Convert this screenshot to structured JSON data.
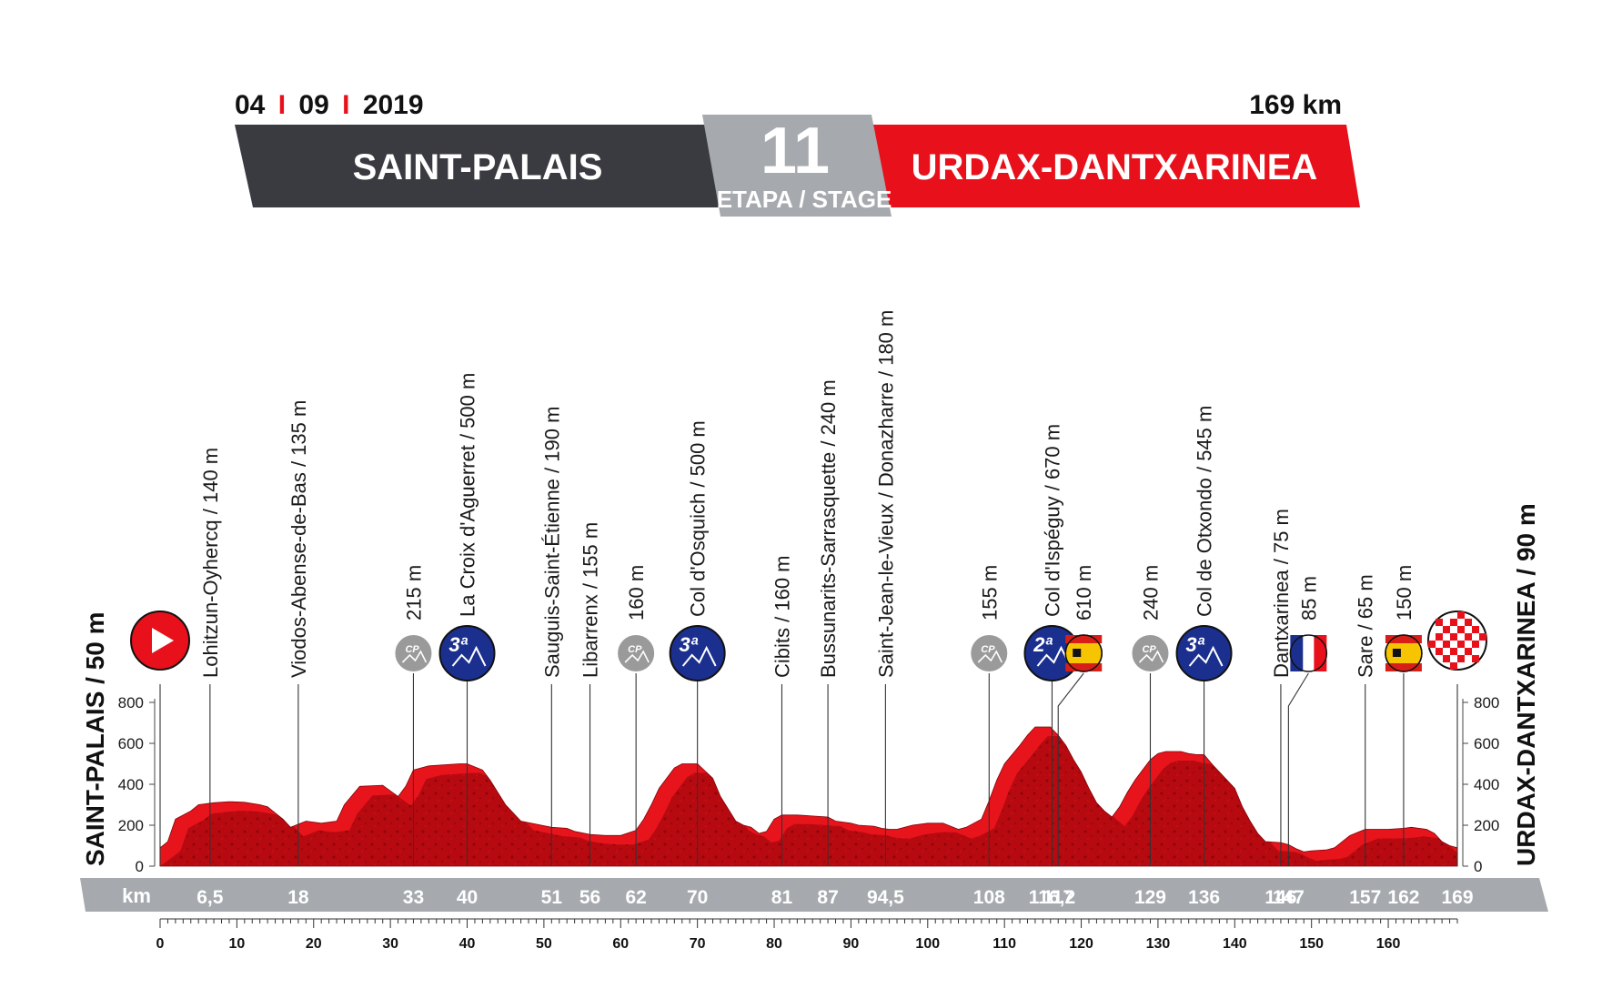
{
  "header": {
    "date_day": "04",
    "date_month": "09",
    "date_year": "2019",
    "distance": "169 km",
    "start_city": "SAINT-PALAIS",
    "finish_city": "URDAX-DANTXARINEA",
    "stage_number": "11",
    "stage_label": "ETAPA / STAGE"
  },
  "colors": {
    "dark_panel": "#3a3b40",
    "red_panel": "#e8101b",
    "grey_panel": "#a6a9ae",
    "profile_dark": "#a5080d",
    "profile_light": "#e8141c",
    "km_band": "#a6a9ae",
    "cat3_badge": "#1b2f8f",
    "cp_badge": "#9a9a9a"
  },
  "side_labels": {
    "start": "SAINT-PALAIS / 50 m",
    "finish": "URDAX-DANTXARINEA / 90 m",
    "km_label": "km"
  },
  "chart_data": {
    "type": "area",
    "xlabel": "km",
    "ylabel": "",
    "xlim": [
      0,
      169
    ],
    "ylim": [
      0,
      800
    ],
    "y_ticks": [
      "0",
      "200",
      "400",
      "600",
      "800"
    ],
    "x_ticks": [
      "0",
      "10",
      "20",
      "30",
      "40",
      "50",
      "60",
      "70",
      "80",
      "90",
      "100",
      "110",
      "120",
      "130",
      "140",
      "150",
      "160"
    ],
    "profile": [
      [
        0,
        90
      ],
      [
        1,
        120
      ],
      [
        2,
        230
      ],
      [
        4,
        270
      ],
      [
        5,
        300
      ],
      [
        7,
        310
      ],
      [
        9,
        315
      ],
      [
        11,
        312
      ],
      [
        13,
        300
      ],
      [
        14,
        290
      ],
      [
        16,
        230
      ],
      [
        17,
        190
      ],
      [
        18,
        205
      ],
      [
        19,
        220
      ],
      [
        21,
        210
      ],
      [
        23,
        220
      ],
      [
        24,
        300
      ],
      [
        26,
        390
      ],
      [
        29,
        395
      ],
      [
        31,
        340
      ],
      [
        32,
        390
      ],
      [
        33,
        470
      ],
      [
        35,
        490
      ],
      [
        37,
        495
      ],
      [
        39,
        500
      ],
      [
        40,
        500
      ],
      [
        42,
        470
      ],
      [
        43,
        420
      ],
      [
        45,
        300
      ],
      [
        47,
        220
      ],
      [
        49,
        205
      ],
      [
        51,
        190
      ],
      [
        53,
        185
      ],
      [
        54,
        170
      ],
      [
        56,
        155
      ],
      [
        58,
        150
      ],
      [
        60,
        150
      ],
      [
        62,
        175
      ],
      [
        63,
        230
      ],
      [
        64,
        300
      ],
      [
        65,
        380
      ],
      [
        66,
        430
      ],
      [
        67,
        480
      ],
      [
        68,
        500
      ],
      [
        70,
        500
      ],
      [
        72,
        430
      ],
      [
        73,
        340
      ],
      [
        74,
        280
      ],
      [
        75,
        220
      ],
      [
        76,
        200
      ],
      [
        77,
        190
      ],
      [
        78,
        160
      ],
      [
        79,
        170
      ],
      [
        80,
        230
      ],
      [
        81,
        250
      ],
      [
        83,
        250
      ],
      [
        85,
        245
      ],
      [
        87,
        240
      ],
      [
        88,
        220
      ],
      [
        90,
        210
      ],
      [
        91,
        200
      ],
      [
        93,
        195
      ],
      [
        94,
        185
      ],
      [
        95,
        180
      ],
      [
        96,
        180
      ],
      [
        98,
        200
      ],
      [
        100,
        210
      ],
      [
        102,
        210
      ],
      [
        104,
        180
      ],
      [
        105,
        190
      ],
      [
        107,
        230
      ],
      [
        108,
        320
      ],
      [
        109,
        420
      ],
      [
        110,
        500
      ],
      [
        112,
        590
      ],
      [
        113,
        640
      ],
      [
        114,
        680
      ],
      [
        116,
        680
      ],
      [
        116.2,
        670
      ],
      [
        117,
        640
      ],
      [
        118,
        590
      ],
      [
        119,
        520
      ],
      [
        120,
        460
      ],
      [
        121,
        380
      ],
      [
        122,
        310
      ],
      [
        123,
        270
      ],
      [
        124,
        240
      ],
      [
        125,
        290
      ],
      [
        126,
        360
      ],
      [
        127,
        420
      ],
      [
        128,
        470
      ],
      [
        129,
        520
      ],
      [
        130,
        550
      ],
      [
        131,
        560
      ],
      [
        133,
        560
      ],
      [
        134,
        550
      ],
      [
        135,
        545
      ],
      [
        136,
        545
      ],
      [
        137,
        500
      ],
      [
        138,
        460
      ],
      [
        139,
        420
      ],
      [
        140,
        380
      ],
      [
        141,
        290
      ],
      [
        142,
        220
      ],
      [
        143,
        160
      ],
      [
        144,
        120
      ],
      [
        146,
        115
      ],
      [
        147,
        105
      ],
      [
        148,
        85
      ],
      [
        149,
        70
      ],
      [
        150,
        75
      ],
      [
        152,
        80
      ],
      [
        153,
        90
      ],
      [
        154,
        120
      ],
      [
        155,
        150
      ],
      [
        156,
        165
      ],
      [
        157,
        180
      ],
      [
        158,
        180
      ],
      [
        160,
        180
      ],
      [
        162,
        185
      ],
      [
        163,
        190
      ],
      [
        165,
        180
      ],
      [
        166,
        160
      ],
      [
        167,
        120
      ],
      [
        168,
        100
      ],
      [
        169,
        90
      ]
    ],
    "points": [
      {
        "km": 0,
        "name": "",
        "alt": "50 m",
        "badge": "start"
      },
      {
        "km": 6.5,
        "name": "Lohitzun-Oyhercq / 140 m",
        "badge": ""
      },
      {
        "km": 18,
        "name": "Viodos-Abense-de-Bas / 135 m",
        "badge": ""
      },
      {
        "km": 33,
        "name": "215 m",
        "badge": "cp"
      },
      {
        "km": 40,
        "name": "La Croix d'Aguerret / 500 m",
        "badge": "cat3"
      },
      {
        "km": 51,
        "name": "Sauguis-Saint-Étienne / 190 m",
        "badge": ""
      },
      {
        "km": 56,
        "name": "Libarrenx / 155 m",
        "badge": ""
      },
      {
        "km": 62,
        "name": "160 m",
        "badge": "cp"
      },
      {
        "km": 70,
        "name": "Col d'Osquich / 500 m",
        "badge": "cat3"
      },
      {
        "km": 81,
        "name": "Cibits / 160 m",
        "badge": ""
      },
      {
        "km": 87,
        "name": "Bussunarits-Sarrasquette / 240 m",
        "badge": ""
      },
      {
        "km": 94.5,
        "name": "Saint-Jean-le-Vieux / Donazharre / 180 m",
        "badge": ""
      },
      {
        "km": 108,
        "name": "155 m",
        "badge": "cp"
      },
      {
        "km": 116.2,
        "name": "Col d'Ispéguy / 670 m",
        "badge": "cat2"
      },
      {
        "km": 117,
        "name": "610 m",
        "badge": "flag-es"
      },
      {
        "km": 129,
        "name": "240 m",
        "badge": "cp"
      },
      {
        "km": 136,
        "name": "Col de Otxondo / 545 m",
        "badge": "cat3"
      },
      {
        "km": 146,
        "name": "Dantxarinea / 75 m",
        "badge": ""
      },
      {
        "km": 147,
        "name": "85 m",
        "badge": "flag-fr"
      },
      {
        "km": 157,
        "name": "Sare / 65 m",
        "badge": ""
      },
      {
        "km": 162,
        "name": "150 m",
        "badge": "flag-es"
      },
      {
        "km": 169,
        "name": "",
        "badge": "finish"
      }
    ],
    "km_labels": [
      "6,5",
      "18",
      "33",
      "40",
      "51",
      "56",
      "62",
      "70",
      "81",
      "87",
      "94,5",
      "108",
      "116,2",
      "117",
      "129",
      "136",
      "146",
      "147",
      "157",
      "162",
      "169"
    ],
    "category_marks": {
      "cat3": "3ª",
      "cat2": "2ª",
      "cp": "CP"
    }
  }
}
